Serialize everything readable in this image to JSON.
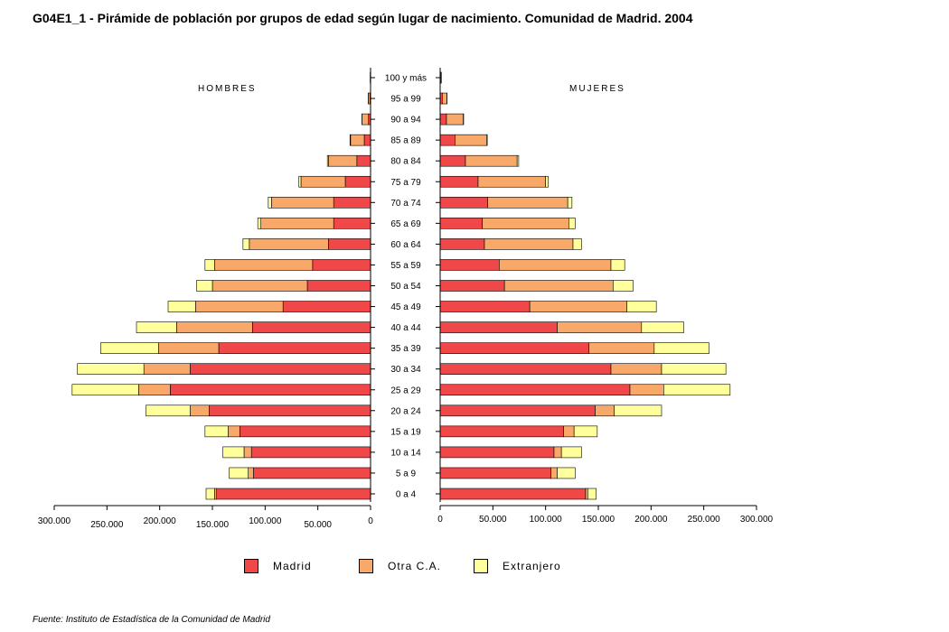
{
  "title": "G04E1_1 - Pirámide de población por grupos de edad según lugar de nacimiento. Comunidad de Madrid.  2004",
  "source": "Fuente: Instituto de Estadística de la Comunidad de Madrid",
  "labels": {
    "left": "HOMBRES",
    "right": "MUJERES"
  },
  "colors": {
    "Madrid": "#f04848",
    "Otra C.A.": "#f8a868",
    "Extranjero": "#ffff9c"
  },
  "chart_data": {
    "type": "bar",
    "orientation": "horizontal-pyramid",
    "categories": [
      "0 a 4",
      "5 a 9",
      "10 a 14",
      "15 a 19",
      "20 a 24",
      "25 a 29",
      "30 a 34",
      "35 a 39",
      "40 a  44",
      "45 a 49",
      "50 a 54",
      "55 a 59",
      "60 a 64",
      "65 a 69",
      "70 a 74",
      "75 a 79",
      "80 a 84",
      "85 a 89",
      "90 a 94",
      "95 a 99",
      "100 y más"
    ],
    "legend": [
      "Madrid",
      "Otra C.A.",
      "Extranjero"
    ],
    "legend_position": "bottom",
    "xlim": [
      0,
      300000
    ],
    "x_ticks": [
      "0",
      "50.000",
      "100.000",
      "150.000",
      "200.000",
      "250.000",
      "300.000"
    ],
    "grid": false,
    "hombres": {
      "Madrid": [
        146000,
        111000,
        113000,
        124000,
        153000,
        190000,
        171000,
        144000,
        112000,
        83000,
        60000,
        55000,
        40000,
        35000,
        35000,
        24000,
        13000,
        6000,
        2000,
        500,
        100
      ],
      "Otra C.A.": [
        2000,
        5000,
        7000,
        11000,
        18000,
        30000,
        44000,
        57000,
        72000,
        83000,
        90000,
        93000,
        75000,
        69000,
        59000,
        42000,
        27000,
        13000,
        6000,
        1700,
        300
      ],
      "Extranjero": [
        8000,
        18000,
        20000,
        22000,
        42000,
        63000,
        63000,
        55000,
        38000,
        26000,
        15000,
        9000,
        6000,
        3000,
        3000,
        2000,
        1000,
        500,
        200,
        100,
        0
      ]
    },
    "mujeres": {
      "Madrid": [
        138000,
        105000,
        108000,
        117000,
        147000,
        180000,
        162000,
        141000,
        111000,
        85000,
        61000,
        56000,
        42000,
        40000,
        45000,
        36000,
        24000,
        14000,
        6000,
        2000,
        500
      ],
      "Otra C.A.": [
        2000,
        6000,
        7000,
        10000,
        18000,
        32000,
        48000,
        62000,
        80000,
        92000,
        103000,
        106000,
        84000,
        82000,
        76000,
        64000,
        49000,
        30000,
        16000,
        4500,
        700
      ],
      "Extranjero": [
        8000,
        17000,
        19000,
        22000,
        45000,
        63000,
        61000,
        52000,
        40000,
        28000,
        19000,
        13000,
        8000,
        6000,
        4000,
        2500,
        1500,
        700,
        300,
        100,
        0
      ]
    }
  }
}
